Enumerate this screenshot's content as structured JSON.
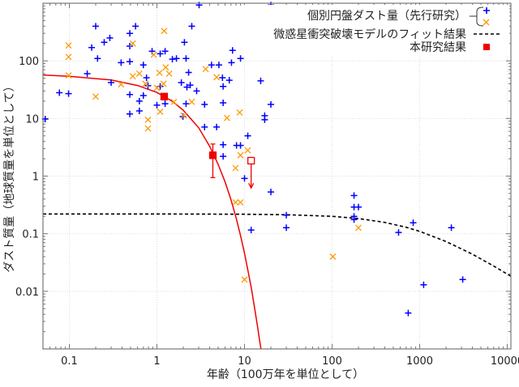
{
  "chart_data": {
    "type": "scatter",
    "xscale": "log",
    "yscale": "log",
    "xlim": [
      0.05,
      11000
    ],
    "ylim": [
      0.001,
      1000
    ],
    "grid": true,
    "xlabel": "年齢（100万年を単位として）",
    "ylabel": "ダスト質量（地球質量を単位として）",
    "xticks": [
      "0.1",
      "1",
      "10",
      "100",
      "1000",
      "10000"
    ],
    "xtick_values": [
      0.1,
      1,
      10,
      100,
      1000,
      10000
    ],
    "yticks": [
      "100",
      "10",
      "1",
      "0.1",
      "0.01"
    ],
    "ytick_values": [
      100,
      10,
      1,
      0.1,
      0.01
    ],
    "legend": {
      "placement": "top-right",
      "prior_label": "個別円盤ダスト量（先行研究）",
      "model_label": "微惑星衝突破壊モデルのフィット結果",
      "study_label": "本研究結果"
    },
    "colors": {
      "prior_a": "#0000ff",
      "prior_b": "#ff9900",
      "study": "#ee0000",
      "model": "#000000"
    },
    "series": [
      {
        "marker": "plus",
        "color": "#0000ff",
        "points": [
          [
            0.2,
            400
          ],
          [
            0.57,
            400
          ],
          [
            0.29,
            250
          ],
          [
            0.25,
            210
          ],
          [
            0.49,
            300
          ],
          [
            0.18,
            170
          ],
          [
            0.49,
            180
          ],
          [
            0.21,
            110
          ],
          [
            0.39,
            93
          ],
          [
            0.49,
            97
          ],
          [
            0.7,
            85
          ],
          [
            0.88,
            147
          ],
          [
            1.09,
            133
          ],
          [
            1.24,
            147
          ],
          [
            1.5,
            107
          ],
          [
            1.67,
            110
          ],
          [
            2.15,
            110
          ],
          [
            2.06,
            210
          ],
          [
            2.5,
            400
          ],
          [
            3.03,
            930
          ],
          [
            0.16,
            60
          ],
          [
            0.3,
            42
          ],
          [
            0.76,
            51
          ],
          [
            0.79,
            37
          ],
          [
            2.3,
            63
          ],
          [
            1.9,
            42
          ],
          [
            2.2,
            35
          ],
          [
            2.4,
            38
          ],
          [
            2.84,
            30
          ],
          [
            0.077,
            28
          ],
          [
            0.098,
            27
          ],
          [
            0.49,
            26
          ],
          [
            0.7,
            25
          ],
          [
            0.63,
            20
          ],
          [
            1.09,
            36
          ],
          [
            1.24,
            18
          ],
          [
            1.0,
            17
          ],
          [
            2.15,
            18
          ],
          [
            0.63,
            13.5
          ],
          [
            0.49,
            12
          ],
          [
            1.98,
            10.8
          ],
          [
            0.053,
            9.8
          ],
          [
            20,
            930
          ],
          [
            7.3,
            152
          ],
          [
            9.0,
            110
          ],
          [
            7.1,
            93
          ],
          [
            4.2,
            85
          ],
          [
            5.1,
            85
          ],
          [
            5.6,
            51
          ],
          [
            6.7,
            46
          ],
          [
            5.7,
            36
          ],
          [
            15.3,
            45
          ],
          [
            3.5,
            17.5
          ],
          [
            5.7,
            18.7
          ],
          [
            20,
            17.5
          ],
          [
            17,
            11.2
          ],
          [
            17,
            9.5
          ],
          [
            3.5,
            7.1
          ],
          [
            4.8,
            7.1
          ],
          [
            10.9,
            5.0
          ],
          [
            5.7,
            3.5
          ],
          [
            8.1,
            3.4
          ],
          [
            9.0,
            3.4
          ],
          [
            5.7,
            2.2
          ],
          [
            10,
            0.91
          ],
          [
            20,
            0.53
          ],
          [
            30,
            0.21
          ],
          [
            11.9,
            0.116
          ],
          [
            30,
            0.127
          ],
          [
            178,
            0.46
          ],
          [
            178,
            0.29
          ],
          [
            200,
            0.29
          ],
          [
            178,
            0.2
          ],
          [
            178,
            0.176
          ],
          [
            574,
            0.105
          ],
          [
            843,
            0.155
          ],
          [
            2300,
            0.127
          ],
          [
            1110,
            0.013
          ],
          [
            3100,
            0.016
          ],
          [
            740,
            0.0042
          ]
        ]
      },
      {
        "marker": "cross",
        "color": "#ff9900",
        "points": [
          [
            0.098,
            185
          ],
          [
            0.098,
            117
          ],
          [
            0.098,
            56
          ],
          [
            0.2,
            24
          ],
          [
            0.39,
            39
          ],
          [
            0.53,
            200
          ],
          [
            0.53,
            54
          ],
          [
            0.63,
            60
          ],
          [
            0.74,
            40
          ],
          [
            0.92,
            128
          ],
          [
            1.21,
            330
          ],
          [
            1.07,
            62
          ],
          [
            1.26,
            77
          ],
          [
            1.38,
            60
          ],
          [
            1.19,
            40
          ],
          [
            1.0,
            34
          ],
          [
            1.56,
            19.4
          ],
          [
            1.09,
            13.1
          ],
          [
            2.5,
            19.4
          ],
          [
            2.02,
            11.2
          ],
          [
            0.79,
            9.5
          ],
          [
            0.79,
            6.7
          ],
          [
            3.6,
            72
          ],
          [
            4.8,
            52
          ],
          [
            6.3,
            10.2
          ],
          [
            8.8,
            12.7
          ],
          [
            10.9,
            2.8
          ],
          [
            9.0,
            2.3
          ],
          [
            7.9,
            1.38
          ],
          [
            7.9,
            0.35
          ],
          [
            9.0,
            0.35
          ],
          [
            200,
            0.127
          ],
          [
            102,
            0.04
          ],
          [
            10,
            0.016
          ]
        ]
      }
    ],
    "study_points": [
      {
        "x": 1.21,
        "y": 24,
        "filled": true
      },
      {
        "x": 4.35,
        "y": 2.3,
        "filled": true,
        "err_low": 0.94,
        "err_high": 3.6
      },
      {
        "x": 11.9,
        "y": 1.85,
        "filled": false,
        "upper_limit_to": 0.62
      }
    ],
    "curves": [
      {
        "style": "solid",
        "color": "#ee0000",
        "points": [
          [
            0.05,
            56.9
          ],
          [
            0.1,
            54.1
          ],
          [
            0.3,
            46.6
          ],
          [
            0.6,
            37.4
          ],
          [
            1,
            28.3
          ],
          [
            1.5,
            19.9
          ],
          [
            2,
            13.9
          ],
          [
            3,
            6.9
          ],
          [
            4,
            3.3
          ],
          [
            5,
            1.6
          ],
          [
            6,
            0.79
          ],
          [
            7,
            0.39
          ],
          [
            8,
            0.19
          ],
          [
            9,
            0.093
          ],
          [
            10,
            0.046
          ],
          [
            11,
            0.022
          ],
          [
            12,
            0.011
          ],
          [
            13,
            0.0053
          ],
          [
            14,
            0.0026
          ],
          [
            15,
            0.0013
          ],
          [
            15.4,
            0.001
          ]
        ]
      },
      {
        "style": "dashed",
        "color": "#000000",
        "points": [
          [
            0.05,
            0.22
          ],
          [
            1,
            0.2198
          ],
          [
            10,
            0.2178
          ],
          [
            30,
            0.2136
          ],
          [
            100,
            0.2
          ],
          [
            200,
            0.1833
          ],
          [
            400,
            0.1571
          ],
          [
            700,
            0.1294
          ],
          [
            1000,
            0.11
          ],
          [
            2000,
            0.0733
          ],
          [
            4000,
            0.044
          ],
          [
            7000,
            0.0275
          ],
          [
            11000,
            0.0183
          ]
        ]
      }
    ]
  }
}
